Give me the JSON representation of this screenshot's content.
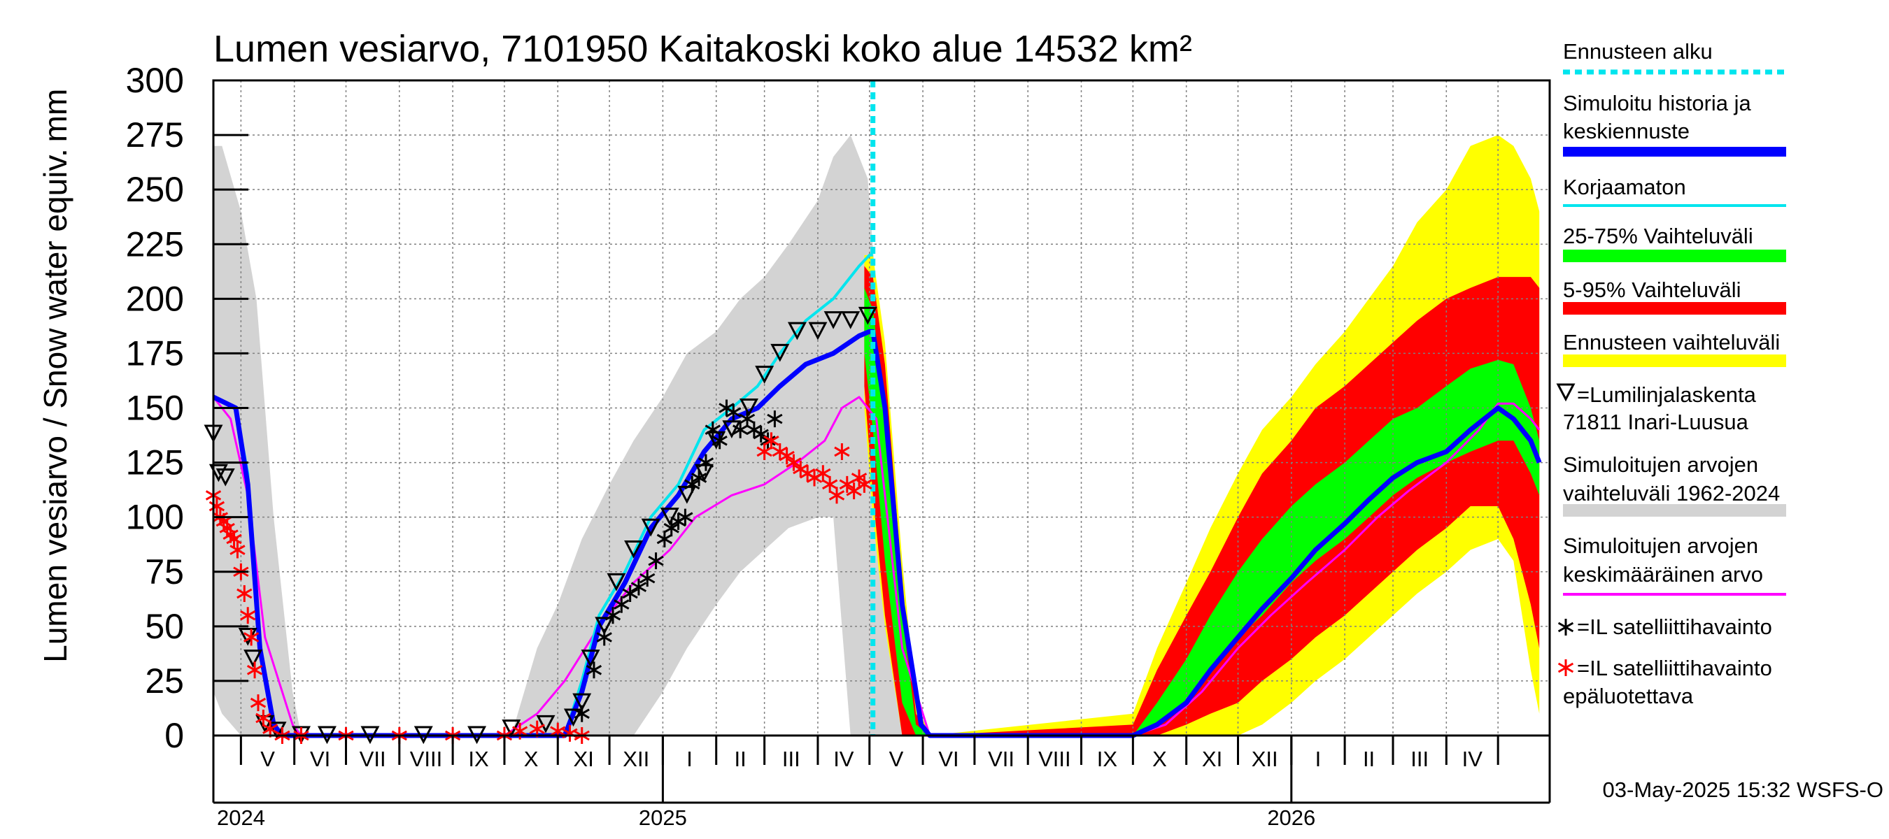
{
  "chart_data": {
    "type": "area",
    "title": "Lumen vesiarvo, 7101950 Kaitakoski koko alue 14532 km²",
    "ylabel": "Lumen vesiarvo / Snow water equiv.",
    "yunit": "mm",
    "ylim": [
      0,
      300
    ],
    "yticks": [
      0,
      25,
      50,
      75,
      100,
      125,
      150,
      175,
      200,
      225,
      250,
      275,
      300
    ],
    "xlim": [
      "2024-04-15",
      "2026-05-31"
    ],
    "forecast_start": "2025-05-03",
    "months": [
      {
        "start": "2024-05-01",
        "label": "V"
      },
      {
        "start": "2024-06-01",
        "label": "VI"
      },
      {
        "start": "2024-07-01",
        "label": "VII"
      },
      {
        "start": "2024-08-01",
        "label": "VIII"
      },
      {
        "start": "2024-09-01",
        "label": "IX"
      },
      {
        "start": "2024-10-01",
        "label": "X"
      },
      {
        "start": "2024-11-01",
        "label": "XI"
      },
      {
        "start": "2024-12-01",
        "label": "XII"
      },
      {
        "start": "2025-01-01",
        "label": "I"
      },
      {
        "start": "2025-02-01",
        "label": "II"
      },
      {
        "start": "2025-03-01",
        "label": "III"
      },
      {
        "start": "2025-04-01",
        "label": "IV"
      },
      {
        "start": "2025-05-01",
        "label": "V"
      },
      {
        "start": "2025-06-01",
        "label": "VI"
      },
      {
        "start": "2025-07-01",
        "label": "VII"
      },
      {
        "start": "2025-08-01",
        "label": "VIII"
      },
      {
        "start": "2025-09-01",
        "label": "IX"
      },
      {
        "start": "2025-10-01",
        "label": "X"
      },
      {
        "start": "2025-11-01",
        "label": "XI"
      },
      {
        "start": "2025-12-01",
        "label": "XII"
      },
      {
        "start": "2026-01-01",
        "label": "I"
      },
      {
        "start": "2026-02-01",
        "label": "II"
      },
      {
        "start": "2026-03-01",
        "label": "III"
      },
      {
        "start": "2026-04-01",
        "label": "IV"
      },
      {
        "start": "2026-05-01",
        "label": ""
      }
    ],
    "years": [
      {
        "date": "2024-04-15",
        "label": "2024"
      },
      {
        "date": "2025-01-01",
        "label": "2025"
      },
      {
        "date": "2026-01-01",
        "label": "2026"
      }
    ],
    "series": [
      {
        "name": "hist_range",
        "kind": "band",
        "color": "#d3d3d3",
        "x": [
          "2024-04-15",
          "2024-04-20",
          "2024-05-01",
          "2024-05-10",
          "2024-05-20",
          "2024-05-31",
          "2024-06-05",
          "2024-10-05",
          "2024-10-20",
          "2024-11-01",
          "2024-11-15",
          "2024-12-01",
          "2024-12-15",
          "2025-01-01",
          "2025-01-15",
          "2025-02-01",
          "2025-02-15",
          "2025-03-01",
          "2025-03-15",
          "2025-04-01",
          "2025-04-10",
          "2025-04-20",
          "2025-04-30",
          "2025-05-10",
          "2025-05-20",
          "2025-05-31",
          "2025-06-05"
        ],
        "upper": [
          270,
          270,
          240,
          200,
          100,
          20,
          0,
          0,
          40,
          60,
          90,
          115,
          135,
          155,
          175,
          185,
          200,
          210,
          225,
          245,
          265,
          275,
          255,
          150,
          60,
          10,
          0
        ],
        "lower": [
          20,
          10,
          0,
          0,
          0,
          0,
          0,
          0,
          0,
          0,
          0,
          0,
          0,
          20,
          40,
          60,
          75,
          85,
          95,
          100,
          100,
          0,
          0,
          0,
          0,
          0,
          0
        ]
      },
      {
        "name": "fc_range",
        "kind": "band",
        "color": "#ffff00",
        "x": [
          "2025-04-28",
          "2025-05-03",
          "2025-05-10",
          "2025-05-20",
          "2025-05-28",
          "2025-06-05",
          "2025-10-01",
          "2025-10-15",
          "2025-11-01",
          "2025-11-15",
          "2025-12-01",
          "2025-12-15",
          "2026-01-01",
          "2026-01-15",
          "2026-02-01",
          "2026-02-15",
          "2026-03-01",
          "2026-03-15",
          "2026-04-01",
          "2026-04-15",
          "2026-05-01",
          "2026-05-10",
          "2026-05-20",
          "2026-05-25"
        ],
        "upper": [
          220,
          220,
          180,
          80,
          15,
          0,
          10,
          40,
          70,
          95,
          120,
          140,
          155,
          170,
          185,
          200,
          215,
          235,
          250,
          270,
          275,
          270,
          255,
          240
        ],
        "lower": [
          150,
          100,
          50,
          0,
          0,
          0,
          0,
          0,
          0,
          0,
          0,
          5,
          15,
          25,
          35,
          45,
          55,
          65,
          75,
          85,
          90,
          80,
          30,
          10
        ]
      },
      {
        "name": "p5_95",
        "kind": "band",
        "color": "#ff0000",
        "x": [
          "2025-04-28",
          "2025-05-03",
          "2025-05-10",
          "2025-05-20",
          "2025-05-28",
          "2025-06-05",
          "2025-10-01",
          "2025-10-15",
          "2025-11-01",
          "2025-11-15",
          "2025-12-01",
          "2025-12-15",
          "2026-01-01",
          "2026-01-15",
          "2026-02-01",
          "2026-02-15",
          "2026-03-01",
          "2026-03-15",
          "2026-04-01",
          "2026-04-15",
          "2026-05-01",
          "2026-05-10",
          "2026-05-20",
          "2026-05-25"
        ],
        "upper": [
          215,
          210,
          170,
          70,
          10,
          0,
          5,
          30,
          55,
          75,
          100,
          120,
          135,
          150,
          160,
          170,
          180,
          190,
          200,
          205,
          210,
          210,
          210,
          205
        ],
        "lower": [
          160,
          110,
          55,
          0,
          0,
          0,
          0,
          0,
          5,
          10,
          15,
          25,
          35,
          45,
          55,
          65,
          75,
          85,
          95,
          105,
          105,
          90,
          60,
          40
        ]
      },
      {
        "name": "p25_75",
        "kind": "band",
        "color": "#00ff00",
        "x": [
          "2025-04-28",
          "2025-05-03",
          "2025-05-10",
          "2025-05-20",
          "2025-05-28",
          "2025-06-05",
          "2025-10-01",
          "2025-10-15",
          "2025-11-01",
          "2025-11-15",
          "2025-12-01",
          "2025-12-15",
          "2026-01-01",
          "2026-01-15",
          "2026-02-01",
          "2026-02-15",
          "2026-03-01",
          "2026-03-15",
          "2026-04-01",
          "2026-04-15",
          "2026-05-01",
          "2026-05-10",
          "2026-05-20",
          "2026-05-25"
        ],
        "upper": [
          205,
          195,
          150,
          55,
          5,
          0,
          0,
          15,
          35,
          55,
          75,
          90,
          105,
          115,
          125,
          135,
          145,
          150,
          160,
          168,
          172,
          170,
          150,
          135
        ],
        "lower": [
          175,
          140,
          80,
          15,
          0,
          0,
          0,
          5,
          15,
          30,
          45,
          55,
          70,
          80,
          90,
          100,
          110,
          118,
          125,
          130,
          135,
          135,
          120,
          110
        ]
      },
      {
        "name": "mean",
        "kind": "line",
        "color": "#ff00ff",
        "width": 3,
        "x": [
          "2024-04-15",
          "2024-04-25",
          "2024-05-05",
          "2024-05-15",
          "2024-05-31",
          "2024-06-05",
          "2024-10-01",
          "2024-10-20",
          "2024-11-05",
          "2024-11-25",
          "2024-12-15",
          "2025-01-05",
          "2025-01-20",
          "2025-02-10",
          "2025-03-01",
          "2025-03-20",
          "2025-04-05",
          "2025-04-15",
          "2025-04-25",
          "2025-05-05",
          "2025-05-20",
          "2025-06-05",
          "2025-10-01",
          "2025-10-20",
          "2025-11-10",
          "2025-12-01",
          "2025-12-20",
          "2026-01-10",
          "2026-02-01",
          "2026-02-20",
          "2026-03-10",
          "2026-04-01",
          "2026-04-20",
          "2026-05-01",
          "2026-05-10",
          "2026-05-20",
          "2026-05-25"
        ],
        "y": [
          155,
          145,
          110,
          45,
          5,
          0,
          0,
          10,
          25,
          50,
          70,
          85,
          100,
          110,
          115,
          125,
          135,
          150,
          155,
          145,
          40,
          0,
          0,
          5,
          20,
          40,
          55,
          70,
          85,
          100,
          112,
          125,
          140,
          152,
          152,
          145,
          140
        ]
      },
      {
        "name": "uncorrected",
        "kind": "line",
        "color": "#00e5ee",
        "width": 4,
        "x": [
          "2024-04-15",
          "2024-04-28",
          "2024-05-05",
          "2024-05-12",
          "2024-05-20",
          "2024-05-25",
          "2024-11-05",
          "2024-11-15",
          "2024-11-25",
          "2024-12-10",
          "2024-12-25",
          "2025-01-10",
          "2025-01-25",
          "2025-02-10",
          "2025-02-25",
          "2025-03-10",
          "2025-03-25",
          "2025-04-10",
          "2025-04-25",
          "2025-05-01",
          "2025-05-03"
        ],
        "y": [
          155,
          150,
          120,
          40,
          5,
          0,
          0,
          25,
          55,
          75,
          100,
          115,
          140,
          150,
          160,
          175,
          190,
          200,
          215,
          220,
          220
        ]
      },
      {
        "name": "simulated",
        "kind": "line",
        "color": "#0000ff",
        "width": 7,
        "x": [
          "2024-04-15",
          "2024-04-28",
          "2024-05-05",
          "2024-05-12",
          "2024-05-20",
          "2024-05-25",
          "2024-11-05",
          "2024-11-15",
          "2024-11-25",
          "2024-12-10",
          "2024-12-25",
          "2025-01-10",
          "2025-01-25",
          "2025-02-10",
          "2025-02-25",
          "2025-03-10",
          "2025-03-25",
          "2025-04-10",
          "2025-04-25",
          "2025-05-01",
          "2025-05-03",
          "2025-05-10",
          "2025-05-20",
          "2025-05-31",
          "2025-06-05",
          "2025-10-01",
          "2025-10-15",
          "2025-11-01",
          "2025-11-15",
          "2025-12-01",
          "2025-12-15",
          "2026-01-01",
          "2026-01-15",
          "2026-02-01",
          "2026-02-15",
          "2026-03-01",
          "2026-03-15",
          "2026-04-01",
          "2026-04-15",
          "2026-05-01",
          "2026-05-10",
          "2026-05-20",
          "2026-05-25"
        ],
        "y": [
          155,
          150,
          115,
          40,
          5,
          0,
          0,
          20,
          50,
          70,
          95,
          110,
          130,
          145,
          150,
          160,
          170,
          175,
          183,
          185,
          185,
          150,
          60,
          5,
          0,
          0,
          5,
          15,
          30,
          45,
          58,
          72,
          85,
          97,
          108,
          118,
          125,
          130,
          140,
          150,
          145,
          135,
          125
        ]
      }
    ],
    "markers": [
      {
        "name": "Lumilinjalaskenta",
        "symbol": "triangle-down",
        "color": "#000000",
        "x": [
          "2024-04-15",
          "2024-04-18",
          "2024-04-22",
          "2024-05-05",
          "2024-05-08",
          "2024-05-15",
          "2024-05-22",
          "2024-06-05",
          "2024-06-20",
          "2024-07-15",
          "2024-08-15",
          "2024-09-15",
          "2024-10-05",
          "2024-10-25",
          "2024-11-10",
          "2024-11-15",
          "2024-11-20",
          "2024-11-28",
          "2024-12-05",
          "2024-12-15",
          "2024-12-25",
          "2025-01-05",
          "2025-01-15",
          "2025-01-25",
          "2025-02-01",
          "2025-02-10",
          "2025-02-20",
          "2025-03-01",
          "2025-03-10",
          "2025-03-20",
          "2025-04-01",
          "2025-04-10",
          "2025-04-20",
          "2025-04-30"
        ],
        "y": [
          138,
          120,
          118,
          45,
          35,
          5,
          2,
          0,
          0,
          0,
          0,
          0,
          3,
          5,
          8,
          15,
          35,
          50,
          70,
          85,
          95,
          100,
          110,
          120,
          135,
          140,
          150,
          165,
          175,
          185,
          185,
          190,
          190,
          192
        ]
      },
      {
        "name": "IL satelliittihavainto",
        "symbol": "asterisk",
        "color": "#000000",
        "x": [
          "2024-11-15",
          "2024-11-22",
          "2024-11-28",
          "2024-12-03",
          "2024-12-08",
          "2024-12-13",
          "2024-12-18",
          "2024-12-23",
          "2024-12-28",
          "2025-01-02",
          "2025-01-06",
          "2025-01-10",
          "2025-01-14",
          "2025-01-18",
          "2025-01-22",
          "2025-01-26",
          "2025-01-30",
          "2025-02-03",
          "2025-02-07",
          "2025-02-11",
          "2025-02-15",
          "2025-02-19",
          "2025-02-23",
          "2025-02-27",
          "2025-03-03",
          "2025-03-07"
        ],
        "y": [
          10,
          30,
          45,
          55,
          60,
          65,
          68,
          72,
          80,
          90,
          95,
          98,
          100,
          115,
          118,
          125,
          140,
          135,
          150,
          148,
          140,
          145,
          140,
          138,
          135,
          145
        ]
      },
      {
        "name": "IL satelliittihavainto epäluotettava",
        "symbol": "asterisk",
        "color": "#ff0000",
        "x": [
          "2024-04-15",
          "2024-04-17",
          "2024-04-19",
          "2024-04-21",
          "2024-04-23",
          "2024-04-25",
          "2024-04-27",
          "2024-04-29",
          "2024-05-01",
          "2024-05-03",
          "2024-05-05",
          "2024-05-07",
          "2024-05-09",
          "2024-05-11",
          "2024-05-14",
          "2024-05-18",
          "2024-05-25",
          "2024-06-05",
          "2024-07-01",
          "2024-08-01",
          "2024-09-01",
          "2024-10-01",
          "2024-10-10",
          "2024-10-20",
          "2024-11-01",
          "2024-11-08",
          "2024-11-15",
          "2025-03-01",
          "2025-03-05",
          "2025-03-10",
          "2025-03-14",
          "2025-03-18",
          "2025-03-22",
          "2025-03-26",
          "2025-03-30",
          "2025-04-04",
          "2025-04-08",
          "2025-04-12",
          "2025-04-15",
          "2025-04-18",
          "2025-04-22",
          "2025-04-25",
          "2025-04-28"
        ],
        "y": [
          110,
          105,
          100,
          98,
          95,
          92,
          90,
          85,
          75,
          65,
          55,
          45,
          30,
          15,
          8,
          3,
          0,
          0,
          0,
          0,
          0,
          0,
          2,
          3,
          2,
          1,
          0,
          130,
          135,
          130,
          128,
          125,
          122,
          120,
          118,
          120,
          115,
          110,
          130,
          115,
          112,
          118,
          115
        ]
      }
    ],
    "legend": [
      {
        "label": "Ennusteen alku",
        "color": "#00e5ee",
        "style": "dashed"
      },
      {
        "label": "Simuloitu historia ja",
        "label2": "keskiennuste",
        "color": "#0000ff",
        "style": "thick"
      },
      {
        "label": "Korjaamaton",
        "color": "#00e5ee",
        "style": "line"
      },
      {
        "label": "25-75% Vaihteluväli",
        "color": "#00ff00",
        "style": "band"
      },
      {
        "label": "5-95% Vaihteluväli",
        "color": "#ff0000",
        "style": "band"
      },
      {
        "label": "Ennusteen vaihteluväli",
        "color": "#ffff00",
        "style": "band"
      },
      {
        "label": "=Lumilinjalaskenta",
        "label2": "71811 Inari-Luusua",
        "color": "#000000",
        "style": "triangle"
      },
      {
        "label": "Simuloitujen arvojen",
        "label2": "vaihteluväli 1962-2024",
        "color": "#d3d3d3",
        "style": "band"
      },
      {
        "label": "Simuloitujen arvojen",
        "label2": "keskimääräinen arvo",
        "color": "#ff00ff",
        "style": "line"
      },
      {
        "label": "=IL satelliittihavainto",
        "color": "#000000",
        "style": "asterisk"
      },
      {
        "label": "=IL satelliittihavainto",
        "label2": "epäluotettava",
        "color": "#ff0000",
        "style": "asterisk"
      }
    ],
    "footer": "03-May-2025 15:32 WSFS-O"
  }
}
